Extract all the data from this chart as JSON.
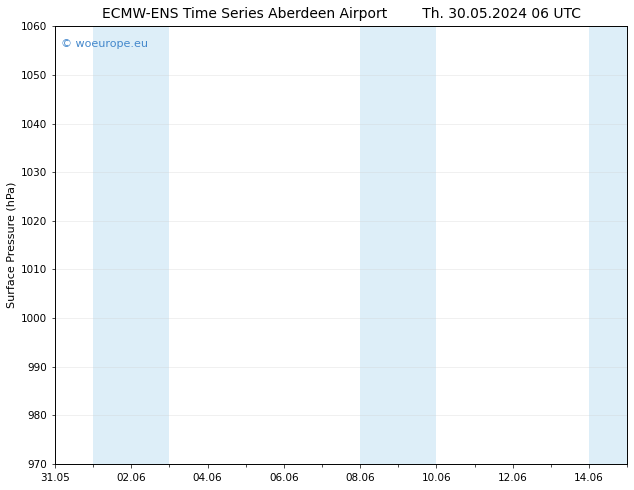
{
  "title_left": "ECMW-ENS Time Series Aberdeen Airport",
  "title_right": "Th. 30.05.2024 06 UTC",
  "ylabel": "Surface Pressure (hPa)",
  "ylim": [
    970,
    1060
  ],
  "yticks": [
    970,
    980,
    990,
    1000,
    1010,
    1020,
    1030,
    1040,
    1050,
    1060
  ],
  "xlim": [
    0,
    15
  ],
  "xtick_labels": [
    "31.05",
    "02.06",
    "04.06",
    "06.06",
    "08.06",
    "10.06",
    "12.06",
    "14.06"
  ],
  "xtick_positions": [
    0,
    2,
    4,
    6,
    8,
    10,
    12,
    14
  ],
  "shaded_bands": [
    {
      "x_start": 1,
      "x_end": 3,
      "color": "#ddeef8"
    },
    {
      "x_start": 8,
      "x_end": 10,
      "color": "#ddeef8"
    },
    {
      "x_start": 14,
      "x_end": 15.05,
      "color": "#ddeef8"
    }
  ],
  "watermark_text": "© woeurope.eu",
  "watermark_color": "#4488cc",
  "watermark_fontsize": 8,
  "background_color": "#ffffff",
  "plot_bg_color": "#ffffff",
  "grid_color": "#cccccc",
  "title_fontsize": 10,
  "ylabel_fontsize": 8,
  "tick_fontsize": 7.5
}
